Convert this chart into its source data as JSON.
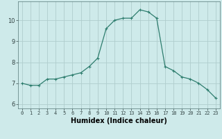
{
  "x": [
    0,
    1,
    2,
    3,
    4,
    5,
    6,
    7,
    8,
    9,
    10,
    11,
    12,
    13,
    14,
    15,
    16,
    17,
    18,
    19,
    20,
    21,
    22,
    23
  ],
  "y": [
    7.0,
    6.9,
    6.9,
    7.2,
    7.2,
    7.3,
    7.4,
    7.5,
    7.8,
    8.2,
    9.6,
    10.0,
    10.1,
    10.1,
    10.5,
    10.4,
    10.1,
    7.8,
    7.6,
    7.3,
    7.2,
    7.0,
    6.7,
    6.3
  ],
  "line_color": "#2e7d6e",
  "marker": "+",
  "marker_size": 3,
  "marker_linewidth": 0.8,
  "line_width": 0.9,
  "bg_color": "#ceeaea",
  "grid_color": "#b0cdcd",
  "xlabel": "Humidex (Indice chaleur)",
  "xlabel_fontsize": 7,
  "ylabel_ticks": [
    6,
    7,
    8,
    9,
    10
  ],
  "ytick_fontsize": 6,
  "xtick_fontsize": 5,
  "xlim": [
    -0.5,
    23.5
  ],
  "ylim": [
    5.8,
    10.9
  ]
}
